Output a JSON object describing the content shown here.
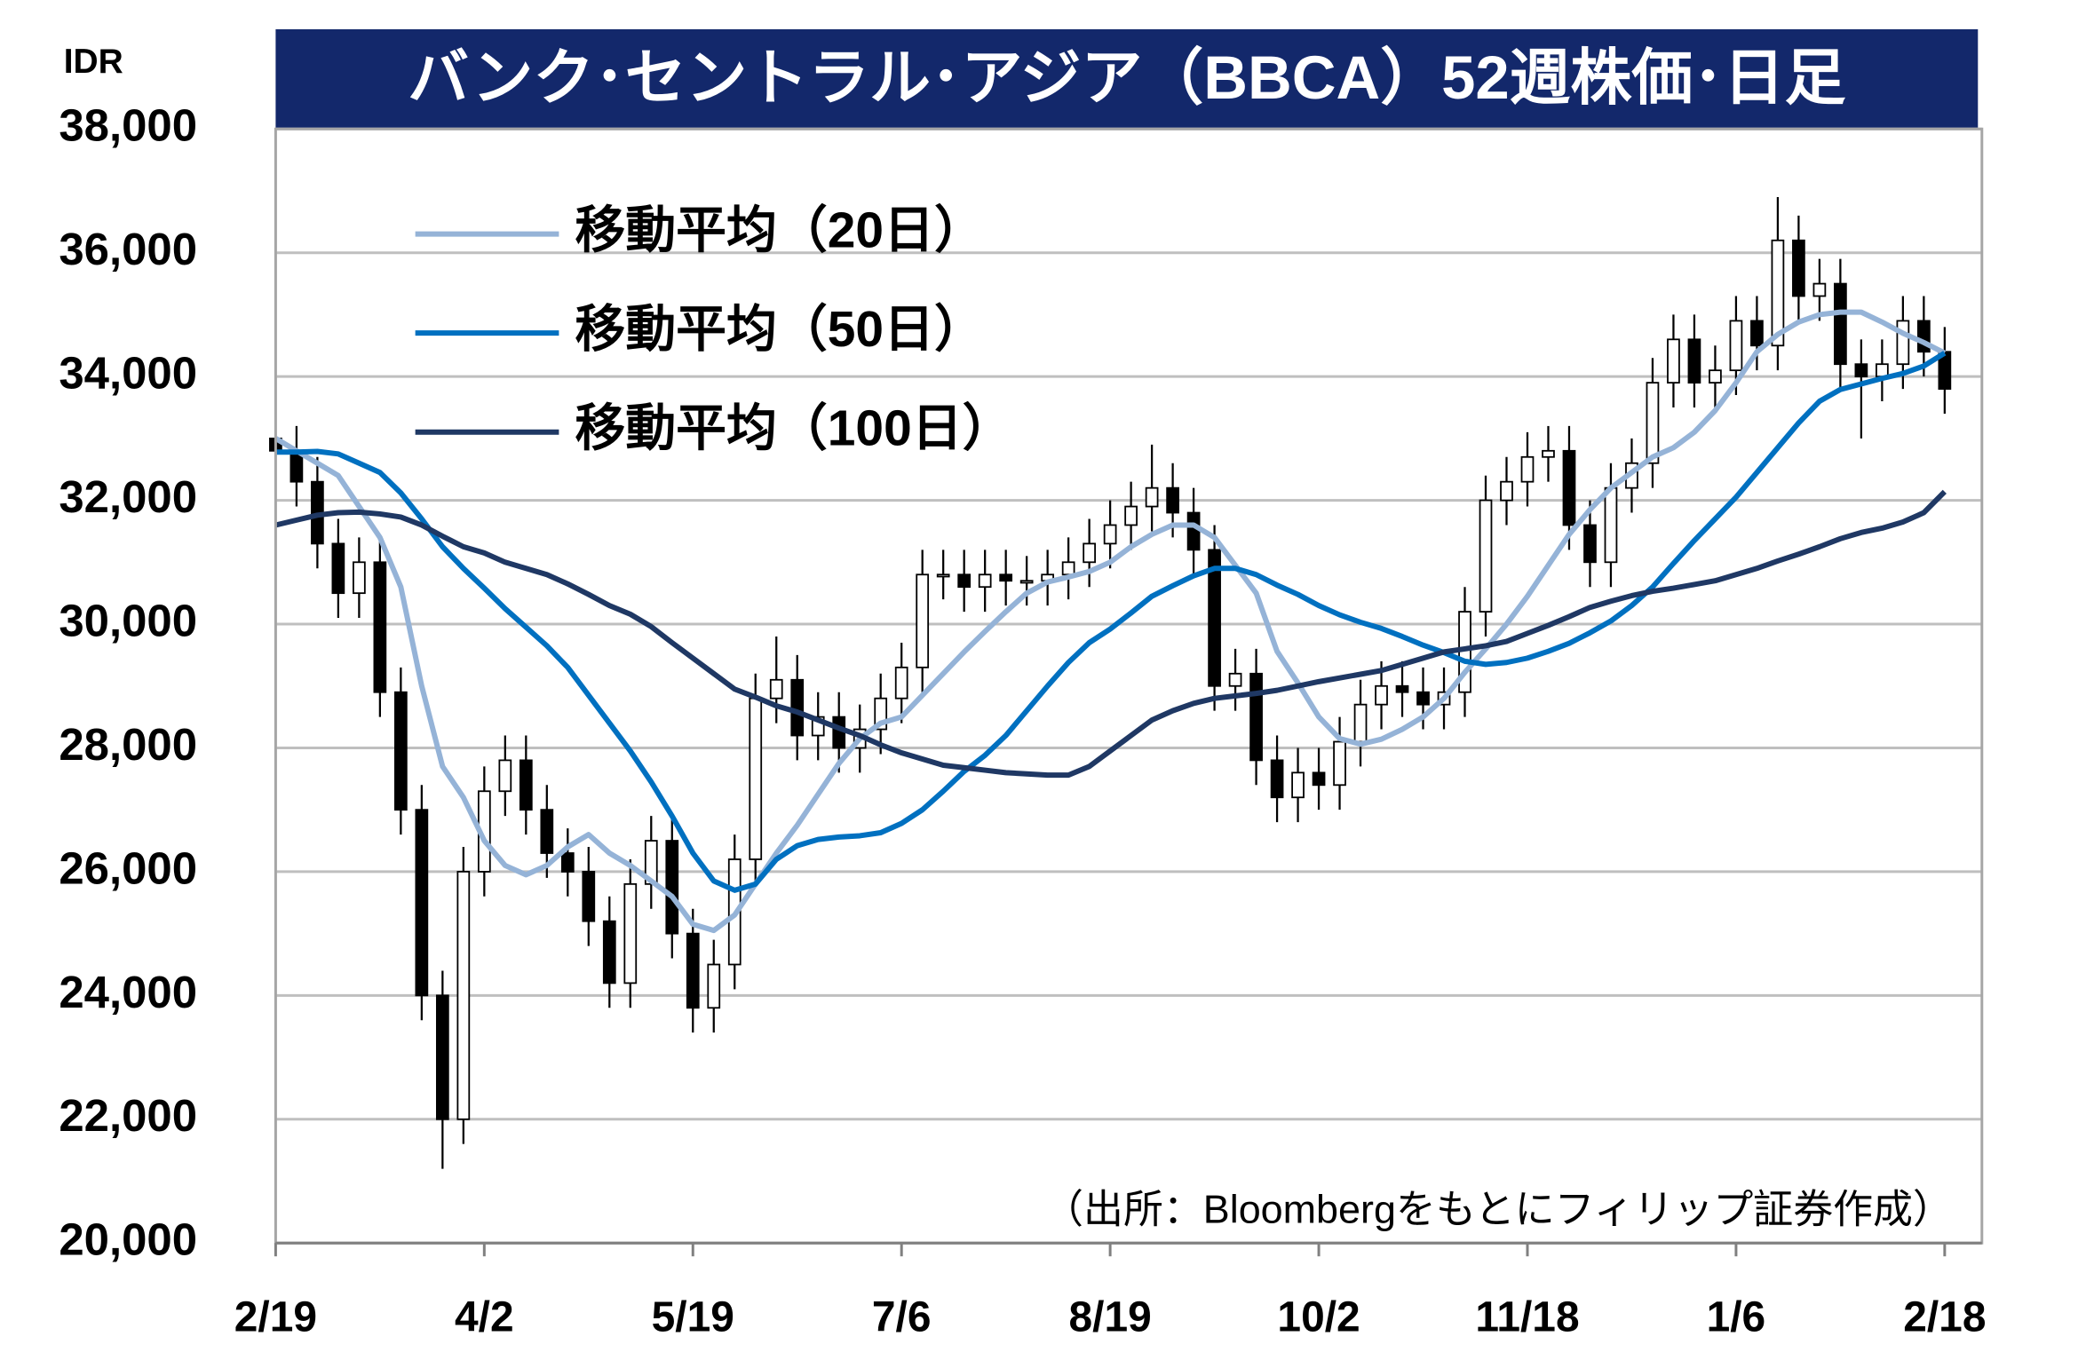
{
  "chart_data": {
    "type": "candlestick",
    "title": "バンク･セントラル･アジア（BBCA）52週株価･日足",
    "y_unit": "IDR",
    "source": "（出所：Bloombergをもとにフィリップ証券作成）",
    "categories": [
      "2/19",
      null,
      null,
      null,
      null,
      null,
      null,
      null,
      null,
      null,
      "4/2",
      null,
      null,
      null,
      null,
      null,
      null,
      null,
      null,
      null,
      "5/19",
      null,
      null,
      null,
      null,
      null,
      null,
      null,
      null,
      null,
      "7/6",
      null,
      null,
      null,
      null,
      null,
      null,
      null,
      null,
      null,
      "8/19",
      null,
      null,
      null,
      null,
      null,
      null,
      null,
      null,
      null,
      "10/2",
      null,
      null,
      null,
      null,
      null,
      null,
      null,
      null,
      null,
      "11/18",
      null,
      null,
      null,
      null,
      null,
      null,
      null,
      null,
      null,
      "1/6",
      null,
      null,
      null,
      null,
      null,
      null,
      null,
      null,
      null,
      "2/18"
    ],
    "open": [
      33000,
      32800,
      32300,
      31300,
      30500,
      31000,
      28900,
      27000,
      24000,
      22000,
      26000,
      27300,
      27800,
      27000,
      26300,
      26000,
      25200,
      24200,
      25800,
      26500,
      25000,
      23800,
      24500,
      26200,
      28800,
      29100,
      28200,
      28500,
      28000,
      28300,
      28800,
      29300,
      30800,
      30800,
      30600,
      30800,
      30700,
      30700,
      30800,
      31000,
      31300,
      31600,
      31900,
      32200,
      31800,
      31200,
      29000,
      29200,
      27800,
      27200,
      27600,
      27400,
      28100,
      28700,
      29000,
      28900,
      28700,
      28900,
      30200,
      32000,
      32300,
      32700,
      32800,
      31600,
      31000,
      32200,
      32600,
      33900,
      34600,
      33900,
      34100,
      34900,
      34500,
      36200,
      35300,
      35500,
      34200,
      34000,
      34200,
      34900,
      34400
    ],
    "high": [
      33400,
      33200,
      32700,
      31700,
      31400,
      31400,
      29300,
      27400,
      24400,
      26400,
      27700,
      28200,
      28200,
      27400,
      26700,
      26400,
      25600,
      26200,
      26900,
      26900,
      25400,
      24900,
      26600,
      29200,
      29800,
      29500,
      28900,
      28900,
      28700,
      29200,
      29700,
      31200,
      31200,
      31200,
      31200,
      31200,
      31100,
      31200,
      31400,
      31700,
      32000,
      32300,
      32900,
      32600,
      32200,
      31600,
      29600,
      29600,
      28200,
      28000,
      28000,
      28500,
      29100,
      29400,
      29400,
      29300,
      29300,
      30600,
      32400,
      32700,
      33100,
      33200,
      33200,
      32000,
      32600,
      33000,
      34300,
      35000,
      35000,
      34500,
      35300,
      35300,
      36900,
      36600,
      35900,
      35900,
      34600,
      34600,
      35300,
      35300,
      34800
    ],
    "low": [
      32400,
      31900,
      30900,
      30100,
      30100,
      28500,
      26600,
      23600,
      21200,
      21600,
      25600,
      26900,
      26600,
      25900,
      25600,
      24800,
      23800,
      23800,
      25400,
      24600,
      23400,
      23400,
      24100,
      25800,
      28400,
      27800,
      27800,
      27600,
      27600,
      27900,
      28400,
      28900,
      30400,
      30200,
      30200,
      30300,
      30300,
      30300,
      30400,
      30600,
      30900,
      31200,
      31500,
      31400,
      30800,
      28600,
      28600,
      27400,
      26800,
      26800,
      27000,
      27000,
      27700,
      28300,
      28500,
      28300,
      28300,
      28500,
      29800,
      31600,
      31900,
      32300,
      31200,
      30600,
      30600,
      31800,
      32200,
      33500,
      33500,
      33500,
      33700,
      34100,
      34100,
      34900,
      34900,
      33800,
      33000,
      33600,
      33800,
      34000,
      33400
    ],
    "close": [
      32800,
      32300,
      31300,
      30500,
      31000,
      28900,
      27000,
      24000,
      22000,
      26000,
      27300,
      27800,
      27000,
      26300,
      26000,
      25200,
      24200,
      25800,
      26500,
      25000,
      23800,
      24500,
      26200,
      28800,
      29100,
      28200,
      28500,
      28000,
      28300,
      28800,
      29300,
      30800,
      30800,
      30600,
      30800,
      30700,
      30700,
      30800,
      31000,
      31300,
      31600,
      31900,
      32200,
      31800,
      31200,
      29000,
      29200,
      27800,
      27200,
      27600,
      27400,
      28100,
      28700,
      29000,
      28900,
      28700,
      28900,
      30200,
      32000,
      32300,
      32700,
      32800,
      31600,
      31000,
      32200,
      32600,
      33900,
      34600,
      33900,
      34100,
      34900,
      34500,
      36200,
      35300,
      35500,
      34200,
      34000,
      34200,
      34900,
      34400,
      33800
    ],
    "up_color": "#ffffff",
    "down_color": "#000000",
    "series": [
      {
        "name": "移動平均（20日）",
        "color": "#95b3d7",
        "values": [
          33000,
          32800,
          32600,
          32400,
          31900,
          31400,
          30600,
          29000,
          27700,
          27200,
          26500,
          26100,
          25950,
          26100,
          26400,
          26600,
          26300,
          26100,
          25850,
          25600,
          25150,
          25050,
          25300,
          25800,
          26300,
          26750,
          27250,
          27750,
          28150,
          28400,
          28500,
          28850,
          29200,
          29550,
          29880,
          30200,
          30500,
          30680,
          30760,
          30850,
          31000,
          31250,
          31450,
          31600,
          31600,
          31400,
          30950,
          30500,
          29560,
          29050,
          28500,
          28150,
          28060,
          28140,
          28300,
          28500,
          28800,
          29220,
          29600,
          30000,
          30450,
          30950,
          31450,
          31850,
          32200,
          32450,
          32700,
          32850,
          33100,
          33450,
          33900,
          34400,
          34680,
          34880,
          35000,
          35040,
          35040,
          34880,
          34700,
          34550,
          34380
        ]
      },
      {
        "name": "移動平均（50日）",
        "color": "#0070c0",
        "values": [
          32780,
          32780,
          32790,
          32750,
          32600,
          32450,
          32120,
          31700,
          31250,
          30900,
          30580,
          30250,
          29950,
          29650,
          29300,
          28850,
          28400,
          27950,
          27450,
          26900,
          26300,
          25850,
          25700,
          25800,
          26200,
          26420,
          26520,
          26560,
          26580,
          26630,
          26780,
          27000,
          27300,
          27620,
          27880,
          28200,
          28600,
          29000,
          29380,
          29700,
          29920,
          30180,
          30450,
          30620,
          30780,
          30900,
          30900,
          30800,
          30630,
          30480,
          30300,
          30150,
          30030,
          29930,
          29800,
          29660,
          29540,
          29400,
          29350,
          29380,
          29450,
          29560,
          29690,
          29860,
          30050,
          30300,
          30600,
          30980,
          31350,
          31700,
          32050,
          32450,
          32850,
          33250,
          33600,
          33790,
          33880,
          33970,
          34050,
          34170,
          34380
        ]
      },
      {
        "name": "移動平均（100日）",
        "color": "#1f3864",
        "values": [
          31600,
          31680,
          31760,
          31800,
          31810,
          31780,
          31730,
          31600,
          31420,
          31250,
          31150,
          31000,
          30900,
          30800,
          30650,
          30480,
          30300,
          30160,
          29960,
          29700,
          29450,
          29200,
          28950,
          28820,
          28680,
          28580,
          28450,
          28320,
          28200,
          28050,
          27920,
          27820,
          27720,
          27680,
          27640,
          27600,
          27580,
          27560,
          27560,
          27700,
          27950,
          28200,
          28450,
          28600,
          28720,
          28800,
          28840,
          28880,
          28930,
          29000,
          29070,
          29130,
          29190,
          29250,
          29350,
          29450,
          29550,
          29600,
          29650,
          29720,
          29850,
          29980,
          30120,
          30270,
          30370,
          30460,
          30530,
          30580,
          30640,
          30700,
          30800,
          30900,
          31020,
          31130,
          31250,
          31380,
          31480,
          31550,
          31650,
          31800,
          32140
        ]
      }
    ],
    "ylim": [
      20000,
      38000
    ],
    "yticks": [
      {
        "value": 20000,
        "label": "20,000"
      },
      {
        "value": 22000,
        "label": "22,000"
      },
      {
        "value": 24000,
        "label": "24,000"
      },
      {
        "value": 26000,
        "label": "26,000"
      },
      {
        "value": 28000,
        "label": "28,000"
      },
      {
        "value": 30000,
        "label": "30,000"
      },
      {
        "value": 32000,
        "label": "32,000"
      },
      {
        "value": 34000,
        "label": "34,000"
      },
      {
        "value": 36000,
        "label": "36,000"
      },
      {
        "value": 38000,
        "label": "38,000"
      }
    ],
    "grid": true,
    "legend": "top-left"
  }
}
